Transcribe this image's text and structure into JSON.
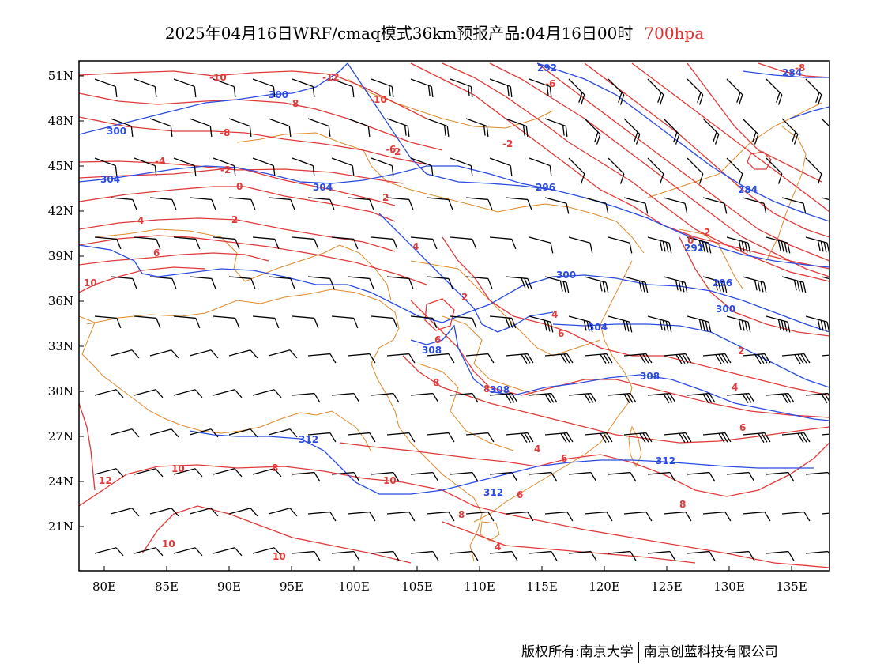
{
  "title": {
    "main": "2025年04月16日WRF/cmaq模式36km预报产品:04月16日00时",
    "level": "700hpa",
    "level_color": "#e03030"
  },
  "lat_labels": [
    "51N",
    "48N",
    "45N",
    "42N",
    "39N",
    "36N",
    "33N",
    "30N",
    "27N",
    "24N",
    "21N"
  ],
  "lon_labels": [
    "80E",
    "85E",
    "90E",
    "95E",
    "100E",
    "105E",
    "110E",
    "115E",
    "120E",
    "125E",
    "130E",
    "135E"
  ],
  "map_extent": {
    "lon": [
      78,
      138
    ],
    "lat": [
      18,
      52
    ]
  },
  "temperature_contours": {
    "color": "#e03a3a",
    "labels": [
      "-10",
      "-12",
      "-8",
      "-10",
      "-8",
      "-6",
      "-4",
      "-2",
      "0",
      "2",
      "4",
      "6",
      "10",
      "2",
      "4",
      "6",
      "8",
      "4",
      "6",
      "8",
      "10",
      "12",
      "10",
      "10",
      "10",
      "-6",
      "-8",
      "-2",
      "0",
      "-2",
      "2",
      "4",
      "6",
      "8",
      "6",
      "8",
      "4",
      "6",
      "8",
      "2",
      "4",
      "-2"
    ]
  },
  "geopotential_contours": {
    "color": "#2a4be0",
    "labels": [
      "292",
      "300",
      "300",
      "304",
      "304",
      "296",
      "292",
      "284",
      "284",
      "296",
      "300",
      "300",
      "304",
      "308",
      "308",
      "308",
      "312",
      "312",
      "312"
    ]
  },
  "boundary_color": "#e08a2a",
  "footer": {
    "left": "版权所有:南京大学",
    "right": "南京创蓝科技有限公司"
  }
}
